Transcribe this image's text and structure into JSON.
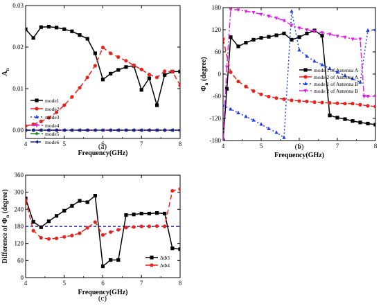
{
  "chart_data": [
    {
      "id": "a",
      "type": "line",
      "caption": "(a)",
      "xlabel": "Frequency(GHz)",
      "ylabel": "A",
      "ylabel_sub": "n",
      "xlim": [
        4,
        8
      ],
      "ylim": [
        -0.002,
        0.03
      ],
      "xticks": [
        4,
        5,
        6,
        7,
        8
      ],
      "yticks": [
        0.0,
        0.01,
        0.02,
        0.03
      ],
      "ytick_labels": [
        "0.00",
        "0.01",
        "0.02",
        "0.03"
      ],
      "legend_position": "bottom-left",
      "series": [
        {
          "name": "mode1",
          "color": "#000000",
          "dash": "",
          "marker": "square",
          "x": [
            4,
            4.2,
            4.4,
            4.6,
            4.8,
            5,
            5.2,
            5.4,
            5.6,
            5.8,
            6,
            6.2,
            6.4,
            6.6,
            6.8,
            7,
            7.2,
            7.4,
            7.6,
            7.8,
            8
          ],
          "y": [
            0.0243,
            0.0222,
            0.0248,
            0.0249,
            0.0247,
            0.0243,
            0.0238,
            0.0229,
            0.022,
            0.0185,
            0.0122,
            0.0136,
            0.0145,
            0.0152,
            0.0155,
            0.0097,
            0.0125,
            0.006,
            0.0133,
            0.0141,
            0.0141
          ]
        },
        {
          "name": "mode2",
          "color": "#e8211b",
          "dash": "7,4",
          "marker": "circle",
          "x": [
            4,
            4.2,
            4.4,
            4.6,
            4.8,
            5,
            5.2,
            5.4,
            5.6,
            5.8,
            6,
            6.2,
            6.4,
            6.6,
            6.8,
            7,
            7.2,
            7.4,
            7.6,
            7.8,
            8
          ],
          "y": [
            0.001,
            0.0014,
            0.0021,
            0.003,
            0.0043,
            0.006,
            0.008,
            0.0102,
            0.0127,
            0.0155,
            0.0199,
            0.0185,
            0.0176,
            0.0167,
            0.0156,
            0.0146,
            0.0134,
            0.0127,
            0.0142,
            0.0141,
            0.0108
          ]
        },
        {
          "name": "mode3",
          "color": "#1f3be8",
          "dash": "2,3",
          "marker": "triangle",
          "x": [
            4,
            4.2,
            4.4,
            4.6,
            4.8,
            5,
            5.2,
            5.4,
            5.6,
            5.8,
            6,
            6.2,
            6.4,
            6.6,
            6.8,
            7,
            7.2,
            7.4,
            7.6,
            7.8,
            8
          ],
          "y": [
            0,
            0,
            0,
            0,
            0,
            0,
            0,
            0,
            0,
            0,
            0,
            0,
            0,
            0,
            0,
            0,
            0,
            0,
            0,
            0,
            0
          ]
        },
        {
          "name": "mode4",
          "color": "#e020e0",
          "dash": "8,3,2,3",
          "marker": "triangle-down",
          "x": [
            4,
            4.2,
            4.4,
            4.6,
            4.8,
            5,
            5.2,
            5.4,
            5.6,
            5.8,
            6,
            6.2,
            6.4,
            6.6,
            6.8,
            7,
            7.2,
            7.4,
            7.6,
            7.8,
            8
          ],
          "y": [
            0,
            0,
            0,
            0,
            0,
            0,
            0,
            0,
            0,
            0,
            0,
            0,
            0,
            0,
            0,
            0,
            0,
            0,
            0,
            0,
            0
          ]
        },
        {
          "name": "mode5",
          "color": "#1c8a1c",
          "dash": "8,3,2,3,2,3",
          "marker": "diamond",
          "x": [
            4,
            4.2,
            4.4,
            4.6,
            4.8,
            5,
            5.2,
            5.4,
            5.6,
            5.8,
            6,
            6.2,
            6.4,
            6.6,
            6.8,
            7,
            7.2,
            7.4,
            7.6,
            7.8,
            8
          ],
          "y": [
            0,
            0,
            0,
            0,
            0,
            0,
            0,
            0,
            0,
            0,
            0,
            0,
            0,
            0,
            0,
            0,
            0,
            0,
            0,
            0,
            0
          ]
        },
        {
          "name": "mode6",
          "color": "#1a1a8c",
          "dash": "6,3",
          "marker": "triangle-left",
          "x": [
            4,
            4.2,
            4.4,
            4.6,
            4.8,
            5,
            5.2,
            5.4,
            5.6,
            5.8,
            6,
            6.2,
            6.4,
            6.6,
            6.8,
            7,
            7.2,
            7.4,
            7.6,
            7.8,
            8
          ],
          "y": [
            0,
            0,
            0,
            0,
            0,
            0,
            0,
            0,
            0,
            0,
            0,
            0,
            0,
            0,
            0,
            0,
            0,
            0,
            0,
            0,
            0
          ]
        }
      ]
    },
    {
      "id": "b",
      "type": "line",
      "caption": "(b)",
      "xlabel": "Frequency(GHz)",
      "ylabel": "Φ",
      "ylabel_sub": "n",
      "ylabel_suffix": " (degree)",
      "xlim": [
        4,
        8
      ],
      "ylim": [
        -180,
        180
      ],
      "xticks": [
        4,
        5,
        6,
        7,
        8
      ],
      "yticks": [
        -180,
        -120,
        -60,
        0,
        60,
        120,
        180
      ],
      "ytick_labels": [
        "-180",
        "-120",
        "-60",
        "0",
        "60",
        "120",
        "180"
      ],
      "legend_position": "right",
      "series": [
        {
          "name": "mode 1 of Antenna A",
          "color": "#000000",
          "dash": "",
          "marker": "square",
          "x": [
            4,
            4.1,
            4.2,
            4.4,
            4.6,
            4.8,
            5,
            5.2,
            5.4,
            5.6,
            5.8,
            6,
            6.2,
            6.4,
            6.6,
            6.8,
            7,
            7.2,
            7.4,
            7.6,
            7.8,
            8
          ],
          "y": [
            -180,
            -40,
            100,
            75,
            85,
            93,
            98,
            101,
            105,
            110,
            93,
            100,
            110,
            118,
            104,
            -112,
            -118,
            -122,
            -127,
            -131,
            -134,
            -137
          ]
        },
        {
          "name": "mode 2 of Antenna A",
          "color": "#e8211b",
          "dash": "7,4",
          "marker": "circle",
          "x": [
            4,
            4.2,
            4.4,
            4.6,
            4.8,
            5,
            5.2,
            5.4,
            5.6,
            5.8,
            6,
            6.2,
            6.4,
            6.6,
            6.8,
            7,
            7.2,
            7.4,
            7.6,
            7.8,
            8
          ],
          "y": [
            95,
            5,
            -20,
            -34,
            -46,
            -55,
            -61,
            -65,
            -68,
            -71,
            -73,
            -74,
            -76,
            -77,
            -78,
            -79,
            -80,
            -80,
            -83,
            -86,
            -88
          ]
        },
        {
          "name": "mode 1 of Antenna B",
          "color": "#1f3be8",
          "dash": "2,3",
          "marker": "triangle",
          "x": [
            4,
            4.2,
            4.4,
            4.6,
            4.8,
            5,
            5.2,
            5.4,
            5.6,
            5.8,
            6,
            6.2,
            6.4,
            6.6,
            6.8,
            7,
            7.2,
            7.4,
            7.6,
            7.8,
            8
          ],
          "y": [
            -85,
            -95,
            -105,
            -115,
            -125,
            -136,
            -148,
            -158,
            -172,
            170,
            65,
            48,
            35,
            25,
            15,
            5,
            -4,
            -13,
            -22,
            118,
            120
          ]
        },
        {
          "name": "mode 2 of Antenna B",
          "color": "#e020e0",
          "dash": "8,3,2,3",
          "marker": "triangle-down",
          "x": [
            4,
            4.1,
            4.2,
            4.4,
            4.6,
            4.8,
            5,
            5.2,
            5.4,
            5.6,
            5.8,
            6,
            6.2,
            6.4,
            6.6,
            6.8,
            7,
            7.2,
            7.4,
            7.6,
            7.7,
            7.8,
            8
          ],
          "y": [
            -175,
            20,
            175,
            174,
            170,
            167,
            162,
            157,
            152,
            145,
            132,
            125,
            120,
            116,
            112,
            108,
            103,
            100,
            95,
            95,
            -60,
            -60,
            -60
          ]
        }
      ]
    },
    {
      "id": "c",
      "type": "line",
      "caption": "(c)",
      "xlabel": "Frequency(GHz)",
      "ylabel": "Difference of Φ",
      "ylabel_sub": "n",
      "ylabel_suffix": " (degree)",
      "xlim": [
        4,
        8
      ],
      "ylim": [
        0,
        360
      ],
      "xticks": [
        4,
        5,
        6,
        7,
        8
      ],
      "yticks": [
        0,
        60,
        120,
        180,
        240,
        300,
        360
      ],
      "ytick_labels": [
        "0",
        "60",
        "120",
        "180",
        "240",
        "300",
        "360"
      ],
      "reference_line": {
        "y": 180,
        "color": "#1a1ab4"
      },
      "legend_position": "bottom-right",
      "series": [
        {
          "name": "ΔΦ3",
          "color": "#000000",
          "dash": "",
          "marker": "square",
          "x": [
            4,
            4.2,
            4.4,
            4.6,
            4.8,
            5,
            5.2,
            5.4,
            5.6,
            5.8,
            6,
            6.2,
            6.4,
            6.6,
            6.8,
            7,
            7.2,
            7.4,
            7.6,
            7.8,
            8
          ],
          "y": [
            278,
            196,
            177,
            198,
            217,
            235,
            252,
            270,
            265,
            288,
            40,
            62,
            62,
            220,
            222,
            225,
            225,
            227,
            225,
            103,
            100
          ]
        },
        {
          "name": "ΔΦ4",
          "color": "#e8211b",
          "dash": "7,4",
          "marker": "circle",
          "x": [
            4,
            4.2,
            4.4,
            4.6,
            4.8,
            5,
            5.2,
            5.4,
            5.6,
            5.8,
            6,
            6.2,
            6.4,
            6.6,
            6.8,
            7,
            7.2,
            7.4,
            7.6,
            7.8,
            8
          ],
          "y": [
            272,
            165,
            140,
            136,
            138,
            143,
            148,
            156,
            175,
            195,
            150,
            160,
            168,
            176,
            178,
            180,
            180,
            181,
            180,
            305,
            311
          ]
        }
      ]
    }
  ]
}
